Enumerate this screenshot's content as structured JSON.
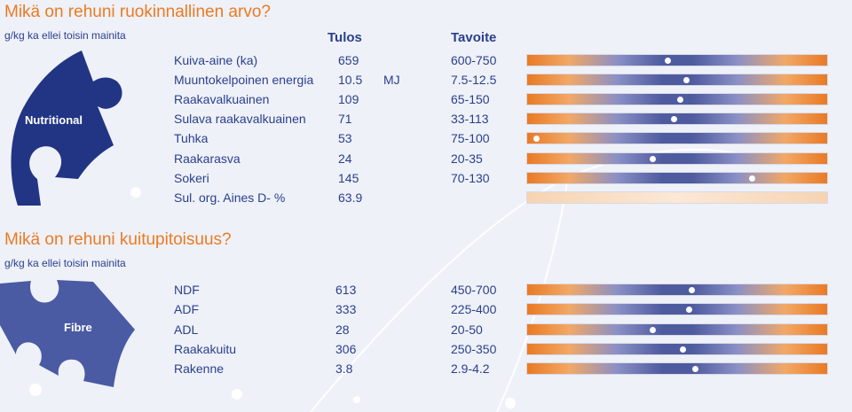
{
  "nutritional": {
    "title": "Mikä on rehuni ruokinnallinen arvo?",
    "subtitle": "g/kg ka ellei toisin mainita",
    "header_result": "Tulos",
    "header_target": "Tavoite",
    "puzzle_label": "Nutritional",
    "rows": [
      {
        "name": "Kuiva-aine (ka)",
        "value": "659",
        "unit": "",
        "target": "600-750",
        "marker": 0.47
      },
      {
        "name": "Muuntokelpoinen energia",
        "value": "10.5",
        "unit": "MJ",
        "target": "7.5-12.5",
        "marker": 0.53
      },
      {
        "name": "Raakavalkuainen",
        "value": "109",
        "unit": "",
        "target": "65-150",
        "marker": 0.51
      },
      {
        "name": "Sulava raakavalkuainen",
        "value": "71",
        "unit": "",
        "target": "33-113",
        "marker": 0.49
      },
      {
        "name": "Tuhka",
        "value": "53",
        "unit": "",
        "target": "75-100",
        "marker": 0.03
      },
      {
        "name": "Raakarasva",
        "value": "24",
        "unit": "",
        "target": "20-35",
        "marker": 0.42
      },
      {
        "name": "Sokeri",
        "value": "145",
        "unit": "",
        "target": "70-130",
        "marker": 0.75
      },
      {
        "name": "Sul. org. Aines D- %",
        "value": "63.9",
        "unit": "",
        "target": "",
        "marker": null
      }
    ]
  },
  "fibre": {
    "title": "Mikä on rehuni kuitupitoisuus?",
    "subtitle": "g/kg ka ellei toisin mainita",
    "puzzle_label": "Fibre",
    "rows": [
      {
        "name": "NDF",
        "value": "613",
        "target": "450-700",
        "marker": 0.55
      },
      {
        "name": "ADF",
        "value": "333",
        "target": "225-400",
        "marker": 0.54
      },
      {
        "name": "ADL",
        "value": "28",
        "target": "20-50",
        "marker": 0.42
      },
      {
        "name": "Raakakuitu",
        "value": "306",
        "target": "250-350",
        "marker": 0.52
      },
      {
        "name": "Rakenne",
        "value": "3.8",
        "target": "2.9-4.2",
        "marker": 0.56
      }
    ]
  },
  "colors": {
    "accent": "#ec7a22",
    "text": "#2b3f8c",
    "puzzle_dark": "#223584",
    "puzzle_light": "#4a5aa3"
  }
}
